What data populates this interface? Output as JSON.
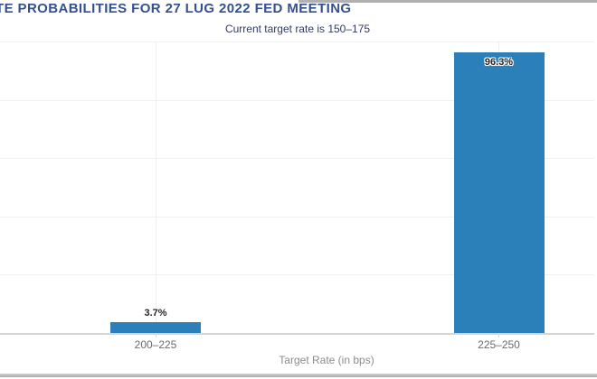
{
  "chart_data": {
    "type": "bar",
    "title": "TE PROBABILITIES FOR 27 LUG 2022 FED MEETING",
    "subtitle": "Current target rate is 150–175",
    "categories": [
      "200–225",
      "225–250"
    ],
    "values": [
      3.7,
      96.3
    ],
    "value_labels": [
      "3.7%",
      "96.3%"
    ],
    "xlabel": "Target Rate (in bps)",
    "ylabel": "",
    "ylim": [
      0,
      100
    ],
    "gridlines_pct": [
      0,
      20,
      40,
      60,
      80,
      100
    ],
    "grid": true,
    "legend": "none",
    "colors": {
      "bar": "#2b80b9",
      "title": "#34508e",
      "subtitle": "#303c66",
      "value_label": "#26282b",
      "tick_label": "#6a6a6a",
      "axis_title": "#8c8c8c",
      "gridline": "#efefef",
      "axis_line": "#d4d4d4",
      "tick_mark": "#dddddd",
      "edge_bar": "#b0b0b0"
    }
  }
}
